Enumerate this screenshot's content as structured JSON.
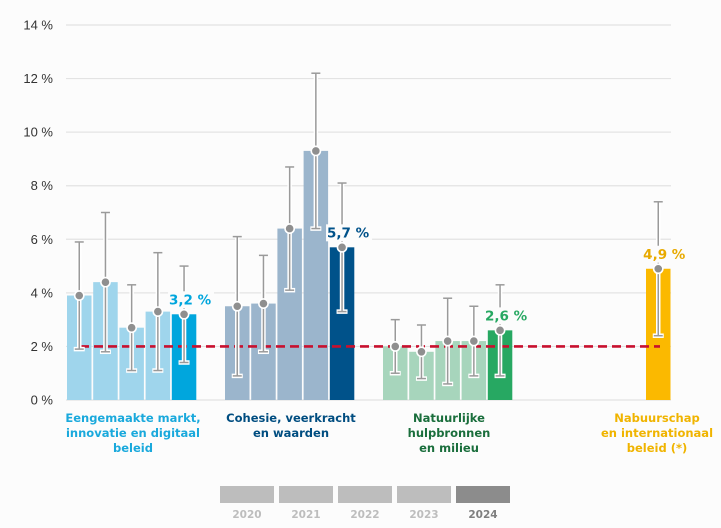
{
  "chart_data": {
    "type": "bar",
    "title": "",
    "xlabel": "",
    "ylabel": "",
    "ylim": [
      0,
      14
    ],
    "yticks": [
      0,
      2,
      4,
      6,
      8,
      10,
      12,
      14
    ],
    "ytick_labels": [
      "0 %",
      "2 %",
      "4 %",
      "6 %",
      "8 %",
      "10 %",
      "12 %",
      "14 %"
    ],
    "grid": true,
    "reference_line": {
      "value": 2,
      "color": "#c8102e",
      "style": "dashed",
      "label": "2 %"
    },
    "years": [
      "2020",
      "2021",
      "2022",
      "2023",
      "2024"
    ],
    "groups": [
      {
        "name": "Eengemaakte markt,\ninnovatie en digitaal\nbeleid",
        "label_color": "#1aa9dc",
        "color_past": "#9fd5ec",
        "color_current": "#00a6dd",
        "bars": [
          {
            "year": "2020",
            "value": 3.9,
            "low": 1.9,
            "high": 5.9
          },
          {
            "year": "2021",
            "value": 4.4,
            "low": 1.8,
            "high": 7.0
          },
          {
            "year": "2022",
            "value": 2.7,
            "low": 1.1,
            "high": 4.3
          },
          {
            "year": "2023",
            "value": 3.3,
            "low": 1.1,
            "high": 5.5
          },
          {
            "year": "2024",
            "value": 3.2,
            "low": 1.4,
            "high": 5.0,
            "label": "3,2 %"
          }
        ]
      },
      {
        "name": "Cohesie, veerkracht\nen waarden",
        "label_color": "#004d80",
        "color_past": "#9bb5cc",
        "color_current": "#00528a",
        "bars": [
          {
            "year": "2020",
            "value": 3.5,
            "low": 0.9,
            "high": 6.1
          },
          {
            "year": "2021",
            "value": 3.6,
            "low": 1.8,
            "high": 5.4
          },
          {
            "year": "2022",
            "value": 6.4,
            "low": 4.1,
            "high": 8.7
          },
          {
            "year": "2023",
            "value": 9.3,
            "low": 6.4,
            "high": 12.2
          },
          {
            "year": "2024",
            "value": 5.7,
            "low": 3.3,
            "high": 8.1,
            "label": "5,7 %"
          }
        ]
      },
      {
        "name": "Natuurlijke\nhulpbronnen\nen milieu",
        "label_color": "#1a6e3c",
        "color_past": "#a7d5bc",
        "color_current": "#27a862",
        "value_label_color": "#27a862",
        "bars": [
          {
            "year": "2020",
            "value": 2.0,
            "low": 1.0,
            "high": 3.0
          },
          {
            "year": "2021",
            "value": 1.8,
            "low": 0.8,
            "high": 2.8
          },
          {
            "year": "2022",
            "value": 2.2,
            "low": 0.6,
            "high": 3.8
          },
          {
            "year": "2023",
            "value": 2.2,
            "low": 0.9,
            "high": 3.5
          },
          {
            "year": "2024",
            "value": 2.6,
            "low": 0.9,
            "high": 4.3,
            "label": "2,6 %"
          }
        ]
      },
      {
        "name": "Nabuurschap\nen internationaal\nbeleid (*)",
        "label_color": "#f0b400",
        "color_past": "#fbd980",
        "color_current": "#fbb900",
        "value_label_color": "#e8aa00",
        "bars": [
          {
            "year": "2024",
            "value": 4.9,
            "low": 2.4,
            "high": 7.4,
            "label": "4,9 %"
          }
        ]
      }
    ],
    "legend": {
      "placement": "bottom-center",
      "entries": [
        {
          "label": "2020",
          "color": "#bdbdbd"
        },
        {
          "label": "2021",
          "color": "#bdbdbd"
        },
        {
          "label": "2022",
          "color": "#bdbdbd"
        },
        {
          "label": "2023",
          "color": "#bdbdbd"
        },
        {
          "label": "2024",
          "color": "#8c8c8c"
        }
      ]
    },
    "colors": {
      "gridline": "#e3e3e3",
      "errorbar": "#9a9a9a",
      "marker": "#8f8f8f"
    }
  }
}
